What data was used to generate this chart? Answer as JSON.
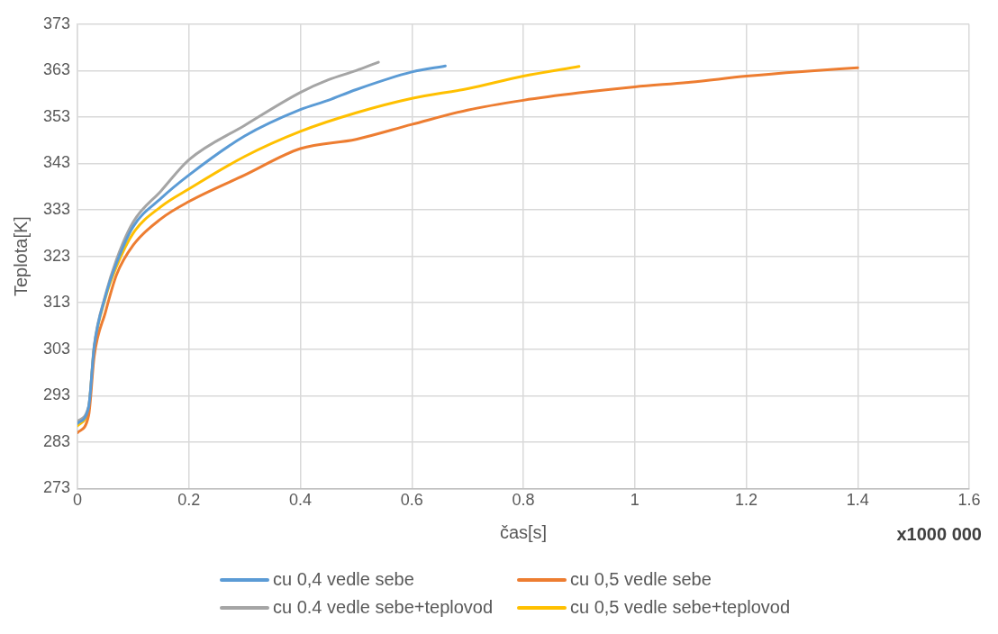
{
  "chart_data": {
    "type": "line",
    "xlabel": "čas[s]",
    "ylabel": "Teplota[K]",
    "annotations": [
      "x1000 000"
    ],
    "xlim": [
      0,
      1.6
    ],
    "xticks": [
      0,
      0.2,
      0.4,
      0.6,
      0.8,
      1,
      1.2,
      1.4,
      1.6
    ],
    "ylim": [
      273,
      373
    ],
    "yticks": [
      273,
      283,
      293,
      303,
      313,
      323,
      333,
      343,
      353,
      363,
      373
    ],
    "grid": true,
    "legend": "bottom",
    "marker": "none",
    "line_style": "solid",
    "series": [
      {
        "name": "cu 0,4 vedle sebe",
        "color": "#5b9bd5",
        "x": [
          0,
          0.02,
          0.03,
          0.05,
          0.07,
          0.1,
          0.15,
          0.2,
          0.3,
          0.4,
          0.45,
          0.5,
          0.6,
          0.66
        ],
        "values": [
          287,
          290.5,
          303.5,
          314.3,
          321.5,
          329.4,
          335.5,
          340.5,
          348.9,
          354.6,
          356.6,
          358.9,
          362.7,
          364
        ]
      },
      {
        "name": "cu 0,5 vedle sebe",
        "color": "#ed7d31",
        "x": [
          0,
          0.02,
          0.03,
          0.05,
          0.07,
          0.1,
          0.15,
          0.2,
          0.3,
          0.4,
          0.5,
          0.6,
          0.7,
          0.8,
          0.9,
          1,
          1.1,
          1.2,
          1.3,
          1.4
        ],
        "values": [
          285,
          288.7,
          301.5,
          310.9,
          319,
          325.4,
          331.1,
          334.8,
          340.5,
          346.2,
          348.2,
          351.4,
          354.5,
          356.6,
          358.2,
          359.5,
          360.5,
          361.8,
          362.8,
          363.6
        ]
      },
      {
        "name": "cu 0.4 vedle sebe+teplovod",
        "color": "#a5a5a5",
        "x": [
          0,
          0.02,
          0.03,
          0.05,
          0.07,
          0.1,
          0.15,
          0.2,
          0.3,
          0.4,
          0.45,
          0.5,
          0.54
        ],
        "values": [
          287.5,
          290.7,
          303.8,
          314.6,
          322.3,
          330.4,
          337.1,
          343.8,
          351.2,
          358.3,
          361,
          363,
          364.8
        ]
      },
      {
        "name": "cu 0,5 vedle sebe+teplovod",
        "color": "#ffc000",
        "x": [
          0,
          0.02,
          0.03,
          0.05,
          0.07,
          0.1,
          0.15,
          0.2,
          0.3,
          0.4,
          0.5,
          0.6,
          0.7,
          0.8,
          0.9
        ],
        "values": [
          286.5,
          290.3,
          303.3,
          314,
          320.8,
          328,
          333.7,
          337.5,
          344.5,
          349.9,
          353.9,
          357,
          359.1,
          361.8,
          363.9
        ]
      }
    ]
  }
}
